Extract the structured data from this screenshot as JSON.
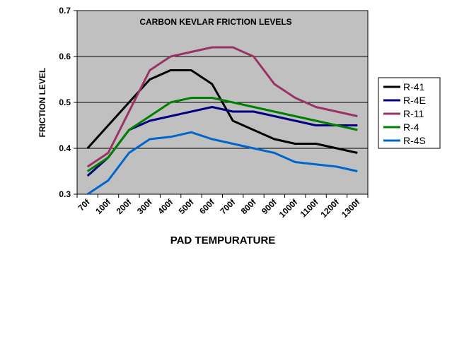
{
  "chart_data": {
    "type": "line",
    "title": "CARBON KEVLAR  FRICTION LEVELS",
    "xlabel": "PAD TEMPURATURE",
    "ylabel": "FRICTION LEVEL",
    "categories": [
      "70f",
      "100f",
      "200f",
      "300f",
      "400f",
      "500f",
      "600f",
      "700f",
      "800f",
      "900f",
      "1000f",
      "1100f",
      "1200f",
      "1300f"
    ],
    "ylim": [
      0.3,
      0.7
    ],
    "yticks": [
      "0.3",
      "0.4",
      "0.5",
      "0.6",
      "0.7"
    ],
    "grid": true,
    "legend_position": "right",
    "plot_background": "#c0c0c0",
    "series": [
      {
        "name": "R-41",
        "color": "#000000",
        "values": [
          0.4,
          0.45,
          0.5,
          0.55,
          0.57,
          0.57,
          0.54,
          0.46,
          0.44,
          0.42,
          0.41,
          0.41,
          0.4,
          0.39
        ]
      },
      {
        "name": "R-4E",
        "color": "#000080",
        "values": [
          0.34,
          0.38,
          0.44,
          0.46,
          0.47,
          0.48,
          0.49,
          0.48,
          0.48,
          0.47,
          0.46,
          0.45,
          0.45,
          0.45
        ]
      },
      {
        "name": "R-11",
        "color": "#993366",
        "values": [
          0.36,
          0.39,
          0.48,
          0.57,
          0.6,
          0.61,
          0.62,
          0.62,
          0.6,
          0.54,
          0.51,
          0.49,
          0.48,
          0.47
        ]
      },
      {
        "name": "R-4",
        "color": "#008000",
        "values": [
          0.35,
          0.38,
          0.44,
          0.47,
          0.5,
          0.51,
          0.51,
          0.5,
          0.49,
          0.48,
          0.47,
          0.46,
          0.45,
          0.44
        ]
      },
      {
        "name": "R-4S",
        "color": "#0066cc",
        "values": [
          0.3,
          0.33,
          0.39,
          0.42,
          0.425,
          0.435,
          0.42,
          0.41,
          0.4,
          0.39,
          0.37,
          0.365,
          0.36,
          0.35
        ]
      }
    ]
  }
}
